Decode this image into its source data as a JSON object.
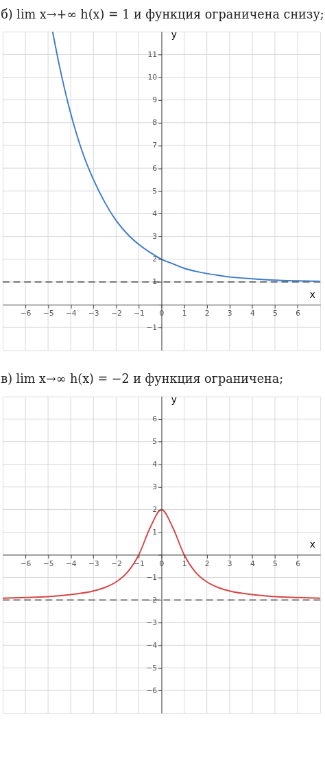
{
  "chart_data": [
    {
      "type": "line",
      "title": "б) lim x→+∞ h(x) = 1 и функция ограничена снизу;",
      "xlabel": "x",
      "ylabel": "y",
      "xlim": [
        -7,
        7
      ],
      "ylim": [
        -2,
        12
      ],
      "xticks": [
        -6,
        -5,
        -4,
        -3,
        -2,
        -1,
        0,
        1,
        2,
        3,
        4,
        5,
        6
      ],
      "yticks": [
        -1,
        {
          "value": 0,
          "label": null
        },
        1,
        2,
        3,
        4,
        5,
        6,
        7,
        8,
        9,
        10,
        11
      ],
      "grid": true,
      "marker": "none",
      "line_style": "solid",
      "series": [
        {
          "color": "#3d7cc9",
          "x": [
            -4.8,
            -4.5,
            -4,
            -3.5,
            -3,
            -2.5,
            -2,
            -1.5,
            -1,
            -0.5,
            0,
            0.5,
            1,
            1.5,
            2,
            2.5,
            3,
            4,
            5,
            6,
            7
          ],
          "values": [
            12.0,
            10.5,
            8.4,
            6.75,
            5.5,
            4.5,
            3.7,
            3.1,
            2.65,
            2.3,
            2.0,
            1.8,
            1.6,
            1.47,
            1.37,
            1.29,
            1.22,
            1.14,
            1.08,
            1.05,
            1.03
          ]
        }
      ],
      "ref_lines": [
        {
          "axis": "y",
          "value": 1,
          "color": "#666666",
          "line_style": "dashed"
        }
      ]
    },
    {
      "type": "line",
      "title": "в) lim x→∞ h(x) = −2 и функция ограничена;",
      "xlabel": "x",
      "ylabel": "y",
      "xlim": [
        -7,
        7
      ],
      "ylim": [
        -7,
        7
      ],
      "xticks": [
        -6,
        -5,
        -4,
        -3,
        -2,
        -1,
        0,
        1,
        2,
        3,
        4,
        5,
        6
      ],
      "yticks": [
        -6,
        -5,
        -4,
        -3,
        -2,
        -1,
        {
          "value": 0,
          "label": null
        },
        1,
        2,
        3,
        4,
        5,
        6
      ],
      "grid": true,
      "marker": "none",
      "line_style": "solid",
      "series": [
        {
          "color": "#d64545",
          "x": [
            -7,
            -6,
            -5,
            -4,
            -3,
            -2.5,
            -2,
            -1.5,
            -1,
            -0.5,
            0,
            0.5,
            1,
            1.5,
            2,
            2.5,
            3,
            4,
            5,
            6,
            7
          ],
          "values": [
            -1.92,
            -1.89,
            -1.85,
            -1.76,
            -1.6,
            -1.45,
            -1.2,
            -0.77,
            0.0,
            1.2,
            2.0,
            1.2,
            0.0,
            -0.77,
            -1.2,
            -1.45,
            -1.6,
            -1.76,
            -1.85,
            -1.89,
            -1.92
          ]
        }
      ],
      "ref_lines": [
        {
          "axis": "y",
          "value": -2,
          "color": "#666666",
          "line_style": "dashed"
        }
      ]
    }
  ]
}
